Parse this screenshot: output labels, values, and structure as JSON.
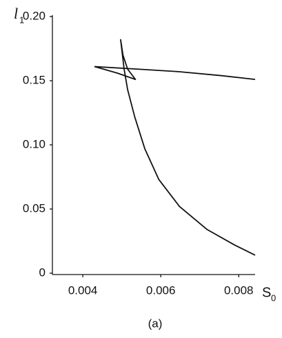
{
  "chart_data": {
    "type": "line",
    "xlabel": "S",
    "xlabel_sub": "0",
    "ylabel": "l",
    "ylabel_sub": "1",
    "caption": "(a)",
    "xlim": [
      0.00322,
      0.00842
    ],
    "ylim": [
      0,
      0.2
    ],
    "xticks": [
      0.004,
      0.006,
      0.008
    ],
    "yticks": [
      {
        "value": 0.2,
        "label": "0.20"
      },
      0.15,
      {
        "value": 0.1,
        "label": "0.10"
      },
      0.05,
      0
    ],
    "color": "#111111",
    "series": [
      {
        "x": [
          0.0043,
          0.00542,
          0.00648,
          0.00754,
          0.00842
        ],
        "values": [
          0.161,
          0.159,
          0.157,
          0.154,
          0.151
        ]
      },
      {
        "x": [
          0.0043,
          0.00488,
          0.00535,
          0.00515,
          0.00503,
          0.00497,
          0.00506,
          0.00515,
          0.00533,
          0.00559,
          0.00595,
          0.00648,
          0.00719,
          0.00789,
          0.00842
        ],
        "values": [
          0.161,
          0.156,
          0.151,
          0.159,
          0.17,
          0.182,
          0.159,
          0.143,
          0.122,
          0.097,
          0.073,
          0.052,
          0.034,
          0.022,
          0.014
        ]
      }
    ]
  }
}
